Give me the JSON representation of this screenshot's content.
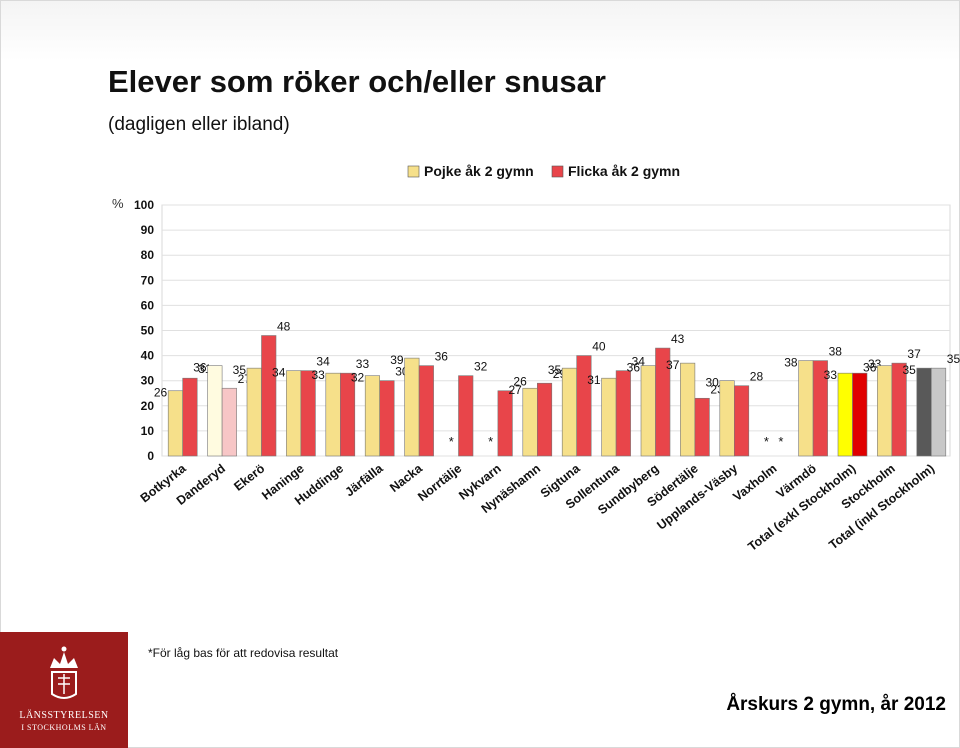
{
  "slide": {
    "title": "Elever som röker och/eller snusar",
    "subtitle": "(dagligen eller ibland)",
    "unit": "%",
    "footnote": "*För låg bas för att redovisa resultat",
    "footer": "Årskurs 2 gymn, år 2012",
    "logo_line1": "LÄNSSTYRELSEN",
    "logo_line2": "I STOCKHOLMS LÄN"
  },
  "chart_data": {
    "type": "bar",
    "title": "Elever som röker och/eller snusar",
    "subtitle": "(dagligen eller ibland)",
    "ylabel": "%",
    "ylim": [
      0,
      100
    ],
    "yticks": [
      0,
      10,
      20,
      30,
      40,
      50,
      60,
      70,
      80,
      90,
      100
    ],
    "grid": true,
    "legend_position": "top",
    "categories": [
      "Botkyrka",
      "Danderyd",
      "Ekerö",
      "Haninge",
      "Huddinge",
      "Järfälla",
      "Nacka",
      "Norrtälje",
      "Nykvarn",
      "Nynäshamn",
      "Sigtuna",
      "Sollentuna",
      "Sundbyberg",
      "Södertälje",
      "Upplands-Väsby",
      "Vaxholm",
      "Värmdö",
      "Total (exkl Stockholm)",
      "Stockholm",
      "Total (inkl Stockholm)"
    ],
    "series": [
      {
        "name": "Pojke åk 2 gymn",
        "color": "#f6e08a",
        "values": [
          26,
          36,
          35,
          34,
          33,
          32,
          39,
          null,
          null,
          27,
          35,
          31,
          36,
          37,
          30,
          null,
          38,
          33,
          36,
          35
        ]
      },
      {
        "name": "Flicka åk 2 gymn",
        "color": "#e8454a",
        "values": [
          31,
          27,
          48,
          34,
          33,
          30,
          36,
          32,
          26,
          29,
          40,
          34,
          43,
          23,
          28,
          null,
          38,
          33,
          37,
          35
        ]
      }
    ],
    "suppressed_marker": "*",
    "suppressed": [
      [
        false,
        false
      ],
      [
        false,
        false
      ],
      [
        false,
        false
      ],
      [
        false,
        false
      ],
      [
        false,
        false
      ],
      [
        false,
        false
      ],
      [
        false,
        false
      ],
      [
        true,
        false
      ],
      [
        true,
        false
      ],
      [
        false,
        false
      ],
      [
        false,
        false
      ],
      [
        false,
        false
      ],
      [
        false,
        false
      ],
      [
        false,
        false
      ],
      [
        false,
        false
      ],
      [
        true,
        true
      ],
      [
        false,
        false
      ],
      [
        false,
        false
      ],
      [
        false,
        false
      ],
      [
        false,
        false
      ]
    ],
    "special_colors": {
      "Danderyd": [
        "#fffbe0",
        "#f7c6c6"
      ],
      "Total (exkl Stockholm)": [
        "#ffff00",
        "#e00000"
      ],
      "Total (inkl Stockholm)": [
        "#595959",
        "#c8c8c8"
      ]
    }
  }
}
